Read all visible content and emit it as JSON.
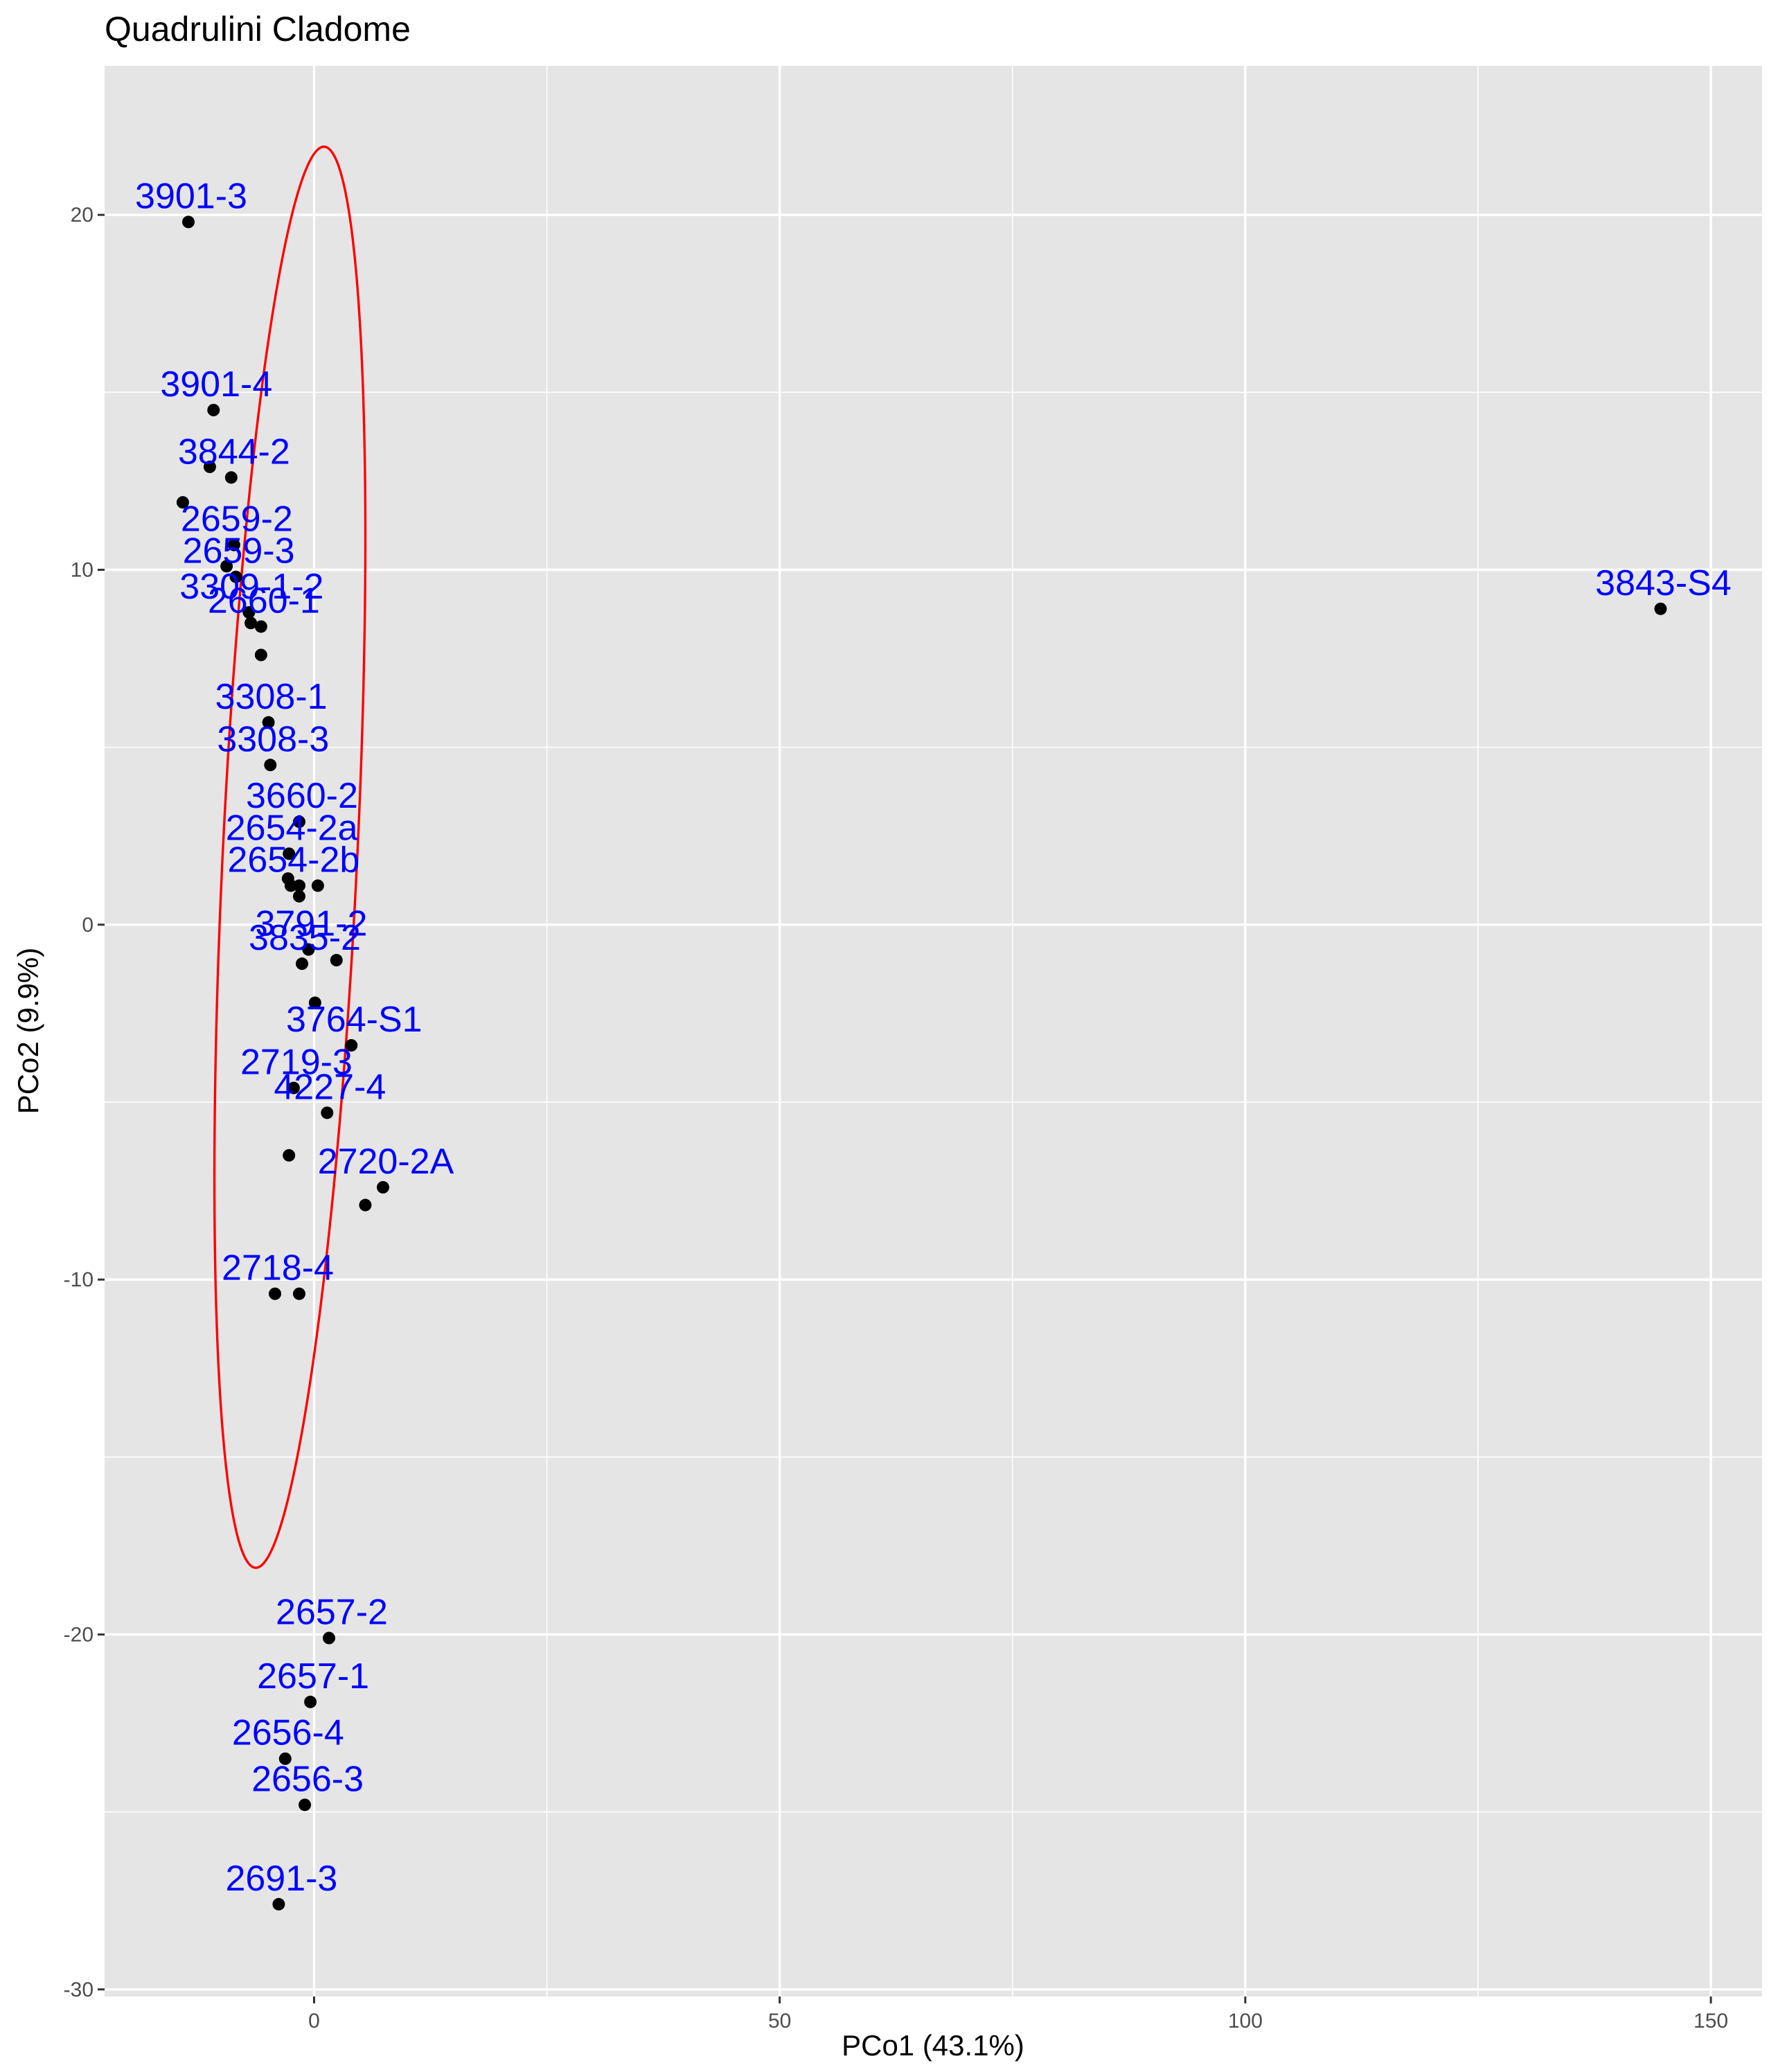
{
  "chart_data": {
    "type": "scatter",
    "title": "Quadrulini Cladome",
    "xlabel": "PCo1 (43.1%)",
    "ylabel": "PCo2 (9.9%)",
    "xlim": [
      -22.5,
      155.5
    ],
    "ylim": [
      -30.2,
      24.2
    ],
    "x_ticks": [
      0,
      50,
      100,
      150
    ],
    "x_tick_labels": [
      "0",
      "50",
      "100",
      "150"
    ],
    "y_ticks": [
      -30,
      -20,
      -10,
      0,
      10,
      20
    ],
    "y_tick_labels": [
      "-30",
      "-20",
      "-10",
      "0",
      "10",
      "20"
    ],
    "x_minor_ticks": [
      25,
      75,
      125
    ],
    "y_minor_ticks": [
      -25,
      -15,
      -5,
      5,
      15
    ],
    "grid": true,
    "panel_color": "#e5e5e5",
    "grid_color": "#ffffff",
    "point_color": "#000000",
    "label_color": "#0000ff",
    "ellipse_color": "#ff0000",
    "points": [
      {
        "label": "3901-3",
        "x": -13.5,
        "y": 19.8
      },
      {
        "label": "3901-4",
        "x": -10.8,
        "y": 14.5
      },
      {
        "label": "",
        "x": -11.2,
        "y": 12.9
      },
      {
        "label": "3844-2",
        "x": -8.9,
        "y": 12.6
      },
      {
        "label": "",
        "x": -14.1,
        "y": 11.9
      },
      {
        "label": "2659-2",
        "x": -8.6,
        "y": 10.7
      },
      {
        "label": "",
        "x": -9.4,
        "y": 10.1
      },
      {
        "label": "2659-3",
        "x": -8.4,
        "y": 9.8
      },
      {
        "label": "3309-1-2",
        "x": -7.0,
        "y": 8.8
      },
      {
        "label": "",
        "x": -6.8,
        "y": 8.5
      },
      {
        "label": "2660-1",
        "x": -5.7,
        "y": 8.4
      },
      {
        "label": "",
        "x": -5.7,
        "y": 7.6
      },
      {
        "label": "3308-1",
        "x": -4.9,
        "y": 5.7
      },
      {
        "label": "3308-3",
        "x": -4.7,
        "y": 4.5
      },
      {
        "label": "3660-2",
        "x": -1.6,
        "y": 2.9
      },
      {
        "label": "2654-2a",
        "x": -2.7,
        "y": 2.0
      },
      {
        "label": "",
        "x": -2.8,
        "y": 1.3
      },
      {
        "label": "2654-2b",
        "x": -2.5,
        "y": 1.1
      },
      {
        "label": "",
        "x": -1.6,
        "y": 1.1
      },
      {
        "label": "",
        "x": 0.4,
        "y": 1.1
      },
      {
        "label": "",
        "x": -1.6,
        "y": 0.8
      },
      {
        "label": "3791-2",
        "x": -0.6,
        "y": -0.7
      },
      {
        "label": "",
        "x": 2.4,
        "y": -1.0
      },
      {
        "label": "3835-2",
        "x": -1.3,
        "y": -1.1
      },
      {
        "label": "",
        "x": 0.1,
        "y": -2.2
      },
      {
        "label": "3764-S1",
        "x": 4.0,
        "y": -3.4
      },
      {
        "label": "2719-3",
        "x": -2.2,
        "y": -4.6
      },
      {
        "label": "4227-4",
        "x": 1.4,
        "y": -5.3
      },
      {
        "label": "",
        "x": -2.7,
        "y": -6.5
      },
      {
        "label": "2720-2A",
        "x": 7.4,
        "y": -7.4
      },
      {
        "label": "",
        "x": 5.5,
        "y": -7.9
      },
      {
        "label": "2718-4",
        "x": -4.2,
        "y": -10.4
      },
      {
        "label": "",
        "x": -1.6,
        "y": -10.4
      },
      {
        "label": "2657-2",
        "x": 1.6,
        "y": -20.1
      },
      {
        "label": "2657-1",
        "x": -0.4,
        "y": -21.9
      },
      {
        "label": "2656-4",
        "x": -3.1,
        "y": -23.5
      },
      {
        "label": "2656-3",
        "x": -1.0,
        "y": -24.8
      },
      {
        "label": "2691-3",
        "x": -3.8,
        "y": -27.6
      },
      {
        "label": "3843-S4",
        "x": 144.6,
        "y": 8.9
      }
    ],
    "ellipse": {
      "center_x": -2.6,
      "center_y": 1.9,
      "semi_major": 20.4,
      "semi_minor": 7.1,
      "rotation_deg": 78.2
    }
  }
}
